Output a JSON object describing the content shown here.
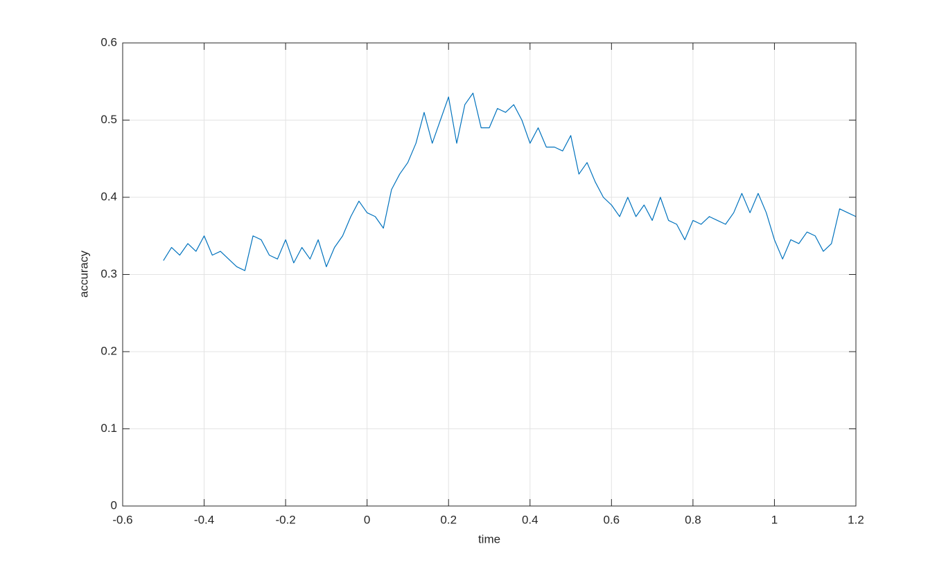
{
  "chart_data": {
    "type": "line",
    "xlabel": "time",
    "ylabel": "accuracy",
    "x": [
      -0.5,
      -0.48,
      -0.46,
      -0.44,
      -0.42,
      -0.4,
      -0.38,
      -0.36,
      -0.34,
      -0.32,
      -0.3,
      -0.28,
      -0.26,
      -0.24,
      -0.22,
      -0.2,
      -0.18,
      -0.16,
      -0.14,
      -0.12,
      -0.1,
      -0.08,
      -0.06,
      -0.04,
      -0.02,
      0,
      0.02,
      0.04,
      0.06,
      0.08,
      0.1,
      0.12,
      0.14,
      0.16,
      0.18,
      0.2,
      0.22,
      0.24,
      0.26,
      0.28,
      0.3,
      0.32,
      0.34,
      0.36,
      0.38,
      0.4,
      0.42,
      0.44,
      0.46,
      0.48,
      0.5,
      0.52,
      0.54,
      0.56,
      0.58,
      0.6,
      0.62,
      0.64,
      0.66,
      0.68,
      0.7,
      0.72,
      0.74,
      0.76,
      0.78,
      0.8,
      0.82,
      0.84,
      0.86,
      0.88,
      0.9,
      0.92,
      0.94,
      0.96,
      0.98,
      1,
      1.02,
      1.04,
      1.06,
      1.08,
      1.1,
      1.12,
      1.14,
      1.16,
      1.18,
      1.2
    ],
    "values": [
      0.318,
      0.335,
      0.325,
      0.34,
      0.33,
      0.35,
      0.325,
      0.33,
      0.32,
      0.31,
      0.305,
      0.35,
      0.345,
      0.325,
      0.32,
      0.345,
      0.315,
      0.335,
      0.32,
      0.345,
      0.31,
      0.335,
      0.35,
      0.375,
      0.395,
      0.38,
      0.375,
      0.36,
      0.41,
      0.43,
      0.445,
      0.47,
      0.51,
      0.47,
      0.5,
      0.53,
      0.47,
      0.52,
      0.535,
      0.49,
      0.49,
      0.515,
      0.51,
      0.52,
      0.5,
      0.47,
      0.49,
      0.465,
      0.465,
      0.46,
      0.48,
      0.43,
      0.445,
      0.42,
      0.4,
      0.39,
      0.375,
      0.4,
      0.375,
      0.39,
      0.37,
      0.4,
      0.37,
      0.365,
      0.345,
      0.37,
      0.365,
      0.375,
      0.37,
      0.365,
      0.38,
      0.405,
      0.38,
      0.405,
      0.38,
      0.345,
      0.32,
      0.345,
      0.34,
      0.355,
      0.35,
      0.33,
      0.34,
      0.385,
      0.38,
      0.375
    ],
    "color": "#0072bd",
    "xlim": [
      -0.6,
      1.2
    ],
    "xticks": [
      -0.6,
      -0.4,
      -0.2,
      0,
      0.2,
      0.4,
      0.6,
      0.8,
      1,
      1.2
    ],
    "ylim": [
      0,
      0.6
    ],
    "yticks": [
      0,
      0.1,
      0.2,
      0.3,
      0.4,
      0.5,
      0.6
    ],
    "grid": true
  }
}
